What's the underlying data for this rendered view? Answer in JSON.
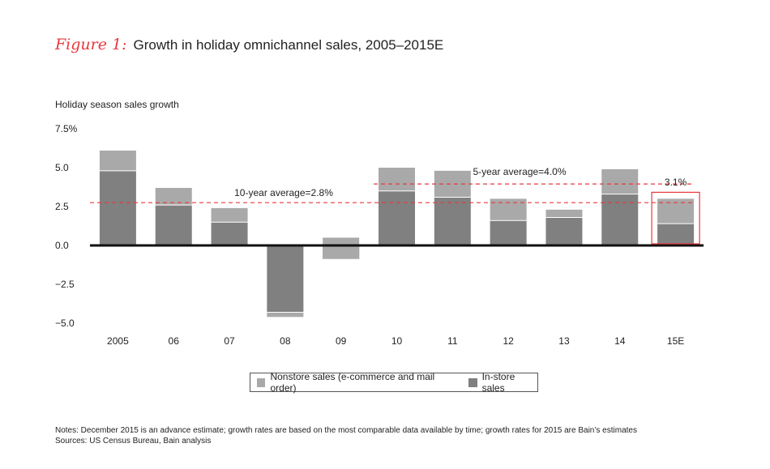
{
  "header": {
    "figure_label": "Figure 1:",
    "title": "Growth in holiday omnichannel sales, 2005–2015E"
  },
  "colors": {
    "in_store": "#808080",
    "nonstore": "#a9a9a9",
    "average_line": "#e8383d",
    "highlight_box": "#e8383d",
    "axis": "#111111"
  },
  "chart_data": {
    "type": "bar",
    "stacked": true,
    "ylabel": "Holiday season sales growth",
    "ylim": [
      -5.0,
      7.5
    ],
    "yticks": [
      "7.5%",
      "5.0",
      "2.5",
      "0.0",
      "−2.5",
      "−5.0"
    ],
    "ytick_values": [
      7.5,
      5.0,
      2.5,
      0.0,
      -2.5,
      -5.0
    ],
    "categories": [
      "2005",
      "06",
      "07",
      "08",
      "09",
      "10",
      "11",
      "12",
      "13",
      "14",
      "15E"
    ],
    "series": [
      {
        "name": "In-store sales",
        "values": [
          4.8,
          2.6,
          1.5,
          -4.3,
          -0.9,
          3.5,
          3.1,
          1.6,
          1.8,
          3.3,
          1.4
        ]
      },
      {
        "name": "Nonstore sales (e-commerce and mail order)",
        "values": [
          1.3,
          1.1,
          0.9,
          -0.3,
          1.4,
          1.5,
          1.7,
          1.4,
          0.5,
          1.6,
          1.6
        ]
      }
    ],
    "averages": [
      {
        "label": "10-year average=2.8%",
        "value": 2.75,
        "from_index": 0,
        "to_index": 10
      },
      {
        "label": "5-year average=4.0%",
        "value": 3.95,
        "from_index": 5,
        "to_index": 10
      }
    ],
    "highlight": {
      "index": 10,
      "label": "3.1%"
    },
    "grid": false,
    "legend_position": "bottom"
  },
  "legend": {
    "nonstore": "Nonstore sales (e-commerce and mail order)",
    "instore": "In-store sales"
  },
  "notes": {
    "line1": "Notes: December 2015 is an advance estimate; growth rates are based on the most comparable data available by time; growth rates for 2015 are Bain’s estimates",
    "line2": "Sources: US Census Bureau, Bain analysis"
  }
}
